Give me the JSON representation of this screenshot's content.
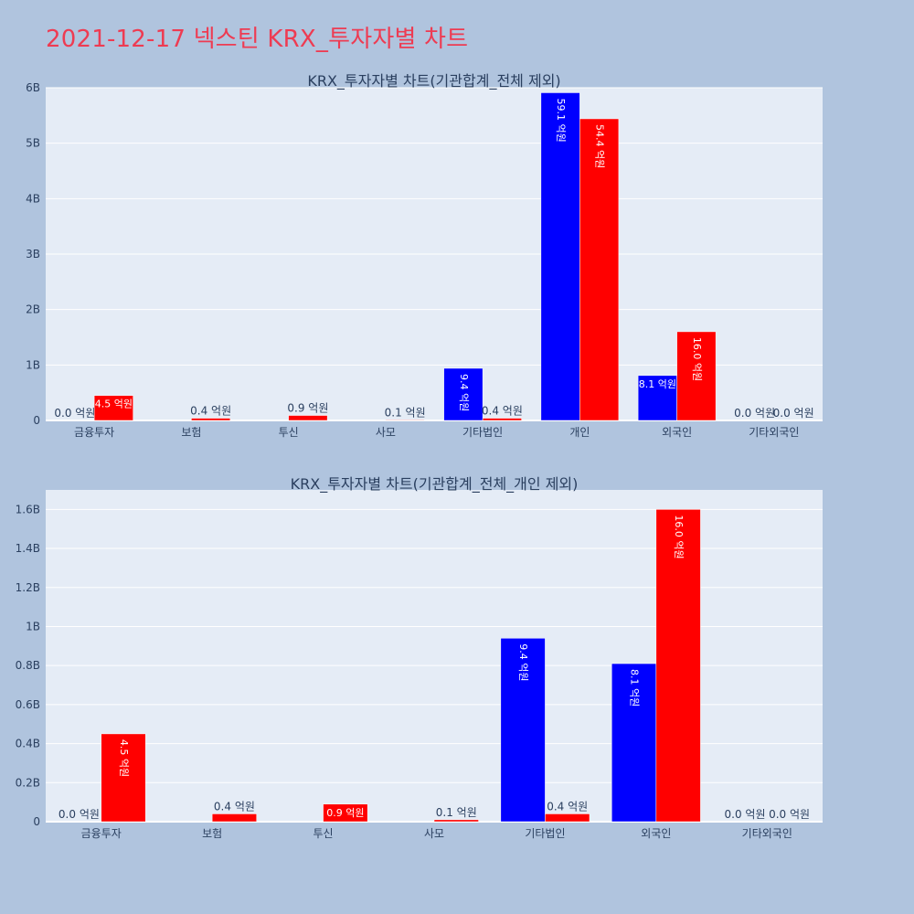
{
  "page": {
    "title": "2021-12-17 넥스틴 KRX_투자자별 차트"
  },
  "chart_data": [
    {
      "type": "bar",
      "title": "KRX_투자자별 차트(기관합계_전체 제외)",
      "categories": [
        "금융투자",
        "보험",
        "투신",
        "사모",
        "기타법인",
        "개인",
        "외국인",
        "기타외국인"
      ],
      "ylim": [
        0,
        6000000000
      ],
      "yticks": [
        0,
        1000000000,
        2000000000,
        3000000000,
        4000000000,
        5000000000,
        6000000000
      ],
      "ytick_labels": [
        "0",
        "1B",
        "2B",
        "3B",
        "4B",
        "5B",
        "6B"
      ],
      "grid": true,
      "series": [
        {
          "color": "#0000ff",
          "values": [
            0,
            0,
            0,
            0,
            940000000,
            5910000000,
            810000000,
            0
          ],
          "labels": [
            "0.0 억원",
            "",
            "",
            "",
            "9.4 억원",
            "59.1 억원",
            "8.1 억원",
            "0.0 억원"
          ]
        },
        {
          "color": "#ff0000",
          "values": [
            450000000,
            40000000,
            90000000,
            10000000,
            40000000,
            5440000000,
            1600000000,
            0
          ],
          "labels": [
            "4.5 억원",
            "0.4 억원",
            "0.9 억원",
            "0.1 억원",
            "0.4 억원",
            "54.4 억원",
            "16.0 억원",
            "0.0 억원"
          ]
        }
      ]
    },
    {
      "type": "bar",
      "title": "KRX_투자자별 차트(기관합계_전체_개인 제외)",
      "categories": [
        "금융투자",
        "보험",
        "투신",
        "사모",
        "기타법인",
        "외국인",
        "기타외국인"
      ],
      "ylim": [
        0,
        1700000000
      ],
      "yticks": [
        0,
        200000000,
        400000000,
        600000000,
        800000000,
        1000000000,
        1200000000,
        1400000000,
        1600000000
      ],
      "ytick_labels": [
        "0",
        "0.2B",
        "0.4B",
        "0.6B",
        "0.8B",
        "1B",
        "1.2B",
        "1.4B",
        "1.6B"
      ],
      "grid": true,
      "series": [
        {
          "color": "#0000ff",
          "values": [
            0,
            0,
            0,
            0,
            940000000,
            810000000,
            0
          ],
          "labels": [
            "0.0 억원",
            "",
            "",
            "",
            "9.4 억원",
            "8.1 억원",
            "0.0 억원"
          ]
        },
        {
          "color": "#ff0000",
          "values": [
            450000000,
            40000000,
            90000000,
            10000000,
            40000000,
            1600000000,
            0
          ],
          "labels": [
            "4.5 억원",
            "0.4 억원",
            "0.9 억원",
            "0.1 억원",
            "0.4 억원",
            "16.0 억원",
            "0.0 억원"
          ]
        }
      ]
    }
  ]
}
